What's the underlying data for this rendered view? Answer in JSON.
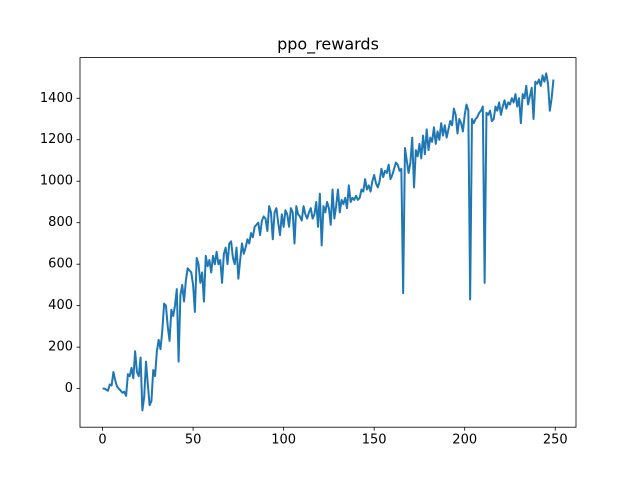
{
  "chart_data": {
    "type": "line",
    "title": "ppo_rewards",
    "x": [
      0,
      1,
      2,
      3,
      4,
      5,
      6,
      7,
      8,
      9,
      10,
      11,
      12,
      13,
      14,
      15,
      16,
      17,
      18,
      19,
      20,
      21,
      22,
      23,
      24,
      25,
      26,
      27,
      28,
      29,
      30,
      31,
      32,
      33,
      34,
      35,
      36,
      37,
      38,
      39,
      40,
      41,
      42,
      43,
      44,
      45,
      46,
      47,
      48,
      49,
      50,
      51,
      52,
      53,
      54,
      55,
      56,
      57,
      58,
      59,
      60,
      61,
      62,
      63,
      64,
      65,
      66,
      67,
      68,
      69,
      70,
      71,
      72,
      73,
      74,
      75,
      76,
      77,
      78,
      79,
      80,
      81,
      82,
      83,
      84,
      85,
      86,
      87,
      88,
      89,
      90,
      91,
      92,
      93,
      94,
      95,
      96,
      97,
      98,
      99,
      100,
      101,
      102,
      103,
      104,
      105,
      106,
      107,
      108,
      109,
      110,
      111,
      112,
      113,
      114,
      115,
      116,
      117,
      118,
      119,
      120,
      121,
      122,
      123,
      124,
      125,
      126,
      127,
      128,
      129,
      130,
      131,
      132,
      133,
      134,
      135,
      136,
      137,
      138,
      139,
      140,
      141,
      142,
      143,
      144,
      145,
      146,
      147,
      148,
      149,
      150,
      151,
      152,
      153,
      154,
      155,
      156,
      157,
      158,
      159,
      160,
      161,
      162,
      163,
      164,
      165,
      166,
      167,
      168,
      169,
      170,
      171,
      172,
      173,
      174,
      175,
      176,
      177,
      178,
      179,
      180,
      181,
      182,
      183,
      184,
      185,
      186,
      187,
      188,
      189,
      190,
      191,
      192,
      193,
      194,
      195,
      196,
      197,
      198,
      199,
      200,
      201,
      202,
      203,
      204,
      205,
      206,
      207,
      208,
      209,
      210,
      211,
      212,
      213,
      214,
      215,
      216,
      217,
      218,
      219,
      220,
      221,
      222,
      223,
      224,
      225,
      226,
      227,
      228,
      229,
      230,
      231,
      232,
      233,
      234,
      235,
      236,
      237,
      238,
      239,
      240,
      241,
      242,
      243,
      244,
      245,
      246,
      247,
      248,
      249
    ],
    "series": [
      {
        "color": "#1f77b4",
        "values": [
          0,
          0,
          -5,
          -10,
          20,
          15,
          80,
          40,
          10,
          0,
          -10,
          -20,
          -15,
          -35,
          70,
          60,
          100,
          50,
          180,
          80,
          60,
          150,
          -105,
          -40,
          130,
          20,
          -80,
          -60,
          90,
          60,
          180,
          235,
          190,
          280,
          410,
          400,
          300,
          230,
          380,
          350,
          400,
          480,
          130,
          450,
          500,
          420,
          520,
          580,
          570,
          560,
          500,
          370,
          630,
          600,
          510,
          560,
          420,
          640,
          590,
          620,
          560,
          640,
          600,
          660,
          600,
          620,
          510,
          650,
          680,
          600,
          700,
          710,
          630,
          600,
          680,
          530,
          620,
          700,
          650,
          680,
          720,
          700,
          750,
          730,
          780,
          790,
          800,
          740,
          810,
          830,
          820,
          760,
          880,
          850,
          720,
          850,
          870,
          800,
          740,
          840,
          780,
          860,
          840,
          780,
          870,
          850,
          700,
          880,
          840,
          830,
          810,
          880,
          840,
          820,
          850,
          870,
          820,
          840,
          900,
          780,
          940,
          690,
          880,
          850,
          900,
          870,
          790,
          960,
          820,
          880,
          960,
          850,
          910,
          890,
          920,
          870,
          980,
          900,
          920,
          910,
          930,
          910,
          920,
          960,
          950,
          1010,
          960,
          980,
          950,
          1000,
          1030,
          990,
          970,
          1000,
          1060,
          1020,
          1050,
          1040,
          1080,
          1010,
          1030,
          1060,
          1090,
          1080,
          1050,
          1060,
          460,
          1160,
          1100,
          1040,
          1090,
          1210,
          970,
          1150,
          1120,
          1180,
          1110,
          1220,
          1130,
          1250,
          1150,
          1210,
          1190,
          1260,
          1180,
          1240,
          1200,
          1280,
          1220,
          1270,
          1210,
          1250,
          1290,
          1270,
          1350,
          1320,
          1230,
          1300,
          1280,
          1240,
          1320,
          1370,
          1340,
          430,
          1300,
          1280,
          1300,
          1310,
          1330,
          1340,
          1360,
          510,
          1330,
          1320,
          1340,
          1290,
          1300,
          1360,
          1340,
          1380,
          1320,
          1360,
          1390,
          1350,
          1380,
          1370,
          1400,
          1380,
          1420,
          1360,
          1400,
          1280,
          1420,
          1400,
          1460,
          1370,
          1410,
          1450,
          1300,
          1480,
          1470,
          1490,
          1460,
          1510,
          1480,
          1520,
          1470,
          1340,
          1400,
          1490
        ]
      }
    ],
    "xlim": [
      -12.45,
      261.45
    ],
    "ylim": [
      -186,
      1596
    ],
    "xticks": [
      0,
      50,
      100,
      150,
      200,
      250
    ],
    "yticks": [
      0,
      200,
      400,
      600,
      800,
      1000,
      1200,
      1400
    ]
  }
}
